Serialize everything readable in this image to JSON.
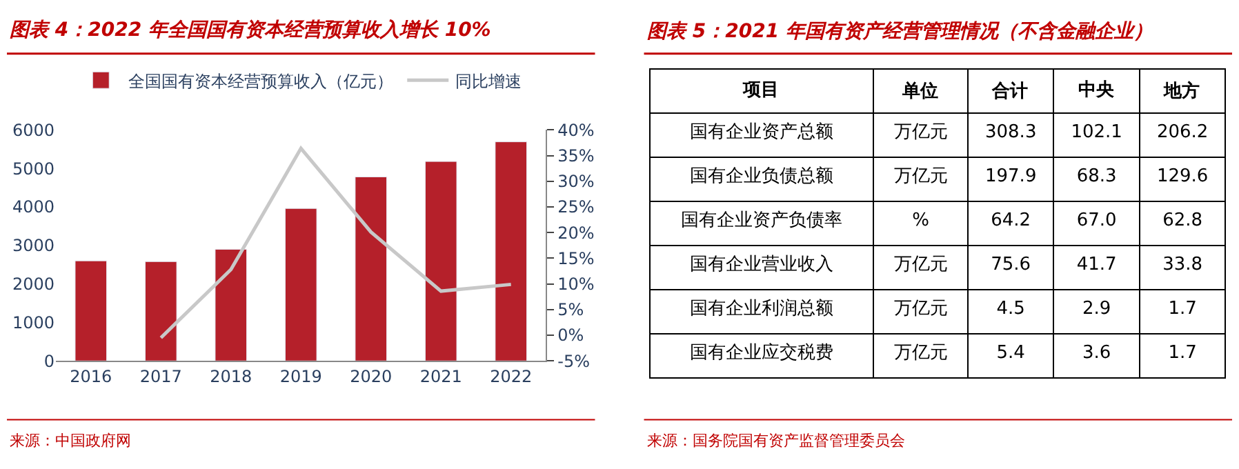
{
  "chart_data": [
    {
      "type": "bar",
      "title": "图表 4：2022 年全国国有资本经营预算收入增长 10%",
      "categories": [
        "2016",
        "2017",
        "2018",
        "2019",
        "2020",
        "2021",
        "2022"
      ],
      "series": [
        {
          "name": "全国国有资本经营预算收入（亿元）",
          "color": "#b5202a",
          "values": [
            2600,
            2580,
            2900,
            3960,
            4780,
            5180,
            5690
          ]
        },
        {
          "name": "同比增速",
          "type": "line",
          "axis": "y2",
          "color": "#c8c8c8",
          "values": [
            null,
            -0.5,
            12.8,
            36.4,
            20.1,
            8.6,
            9.9
          ]
        }
      ],
      "ylim": [
        0,
        6000
      ],
      "yticks": [
        0,
        1000,
        2000,
        3000,
        4000,
        5000,
        6000
      ],
      "y2lim": [
        -5,
        40
      ],
      "y2ticks": [
        {
          "value": -5,
          "label": "-5%"
        },
        {
          "value": 0,
          "label": "0%"
        },
        {
          "value": 5,
          "label": "5%"
        },
        {
          "value": 10,
          "label": "10%"
        },
        {
          "value": 15,
          "label": "15%"
        },
        {
          "value": 20,
          "label": "20%"
        },
        {
          "value": 25,
          "label": "25%"
        },
        {
          "value": 30,
          "label": "30%"
        },
        {
          "value": 35,
          "label": "35%"
        },
        {
          "value": 40,
          "label": "40%"
        }
      ],
      "legend": "top",
      "annotations": [
        "来源：中国政府网"
      ]
    },
    {
      "type": "other",
      "title": "图表 5：2021 年国有资产经营管理情况（不含金融企业）",
      "categories": [
        "项目",
        "单位",
        "合计",
        "中央",
        "地方"
      ],
      "y_categories": [
        "国有企业资产总额",
        "国有企业负债总额",
        "国有企业资产负债率",
        "国有企业营业收入",
        "国有企业利润总额",
        "国有企业应交税费"
      ],
      "cell_labels": [
        [
          "万亿元",
          "308.3",
          "102.1",
          "206.2"
        ],
        [
          "万亿元",
          "197.9",
          "68.3",
          "129.6"
        ],
        [
          "%",
          "64.2",
          "67.0",
          "62.8"
        ],
        [
          "万亿元",
          "75.6",
          "41.7",
          "33.8"
        ],
        [
          "万亿元",
          "4.5",
          "2.9",
          "1.7"
        ],
        [
          "万亿元",
          "5.4",
          "3.6",
          "1.7"
        ]
      ],
      "annotations": [
        "来源：国务院国有资产监督管理委员会"
      ]
    }
  ]
}
